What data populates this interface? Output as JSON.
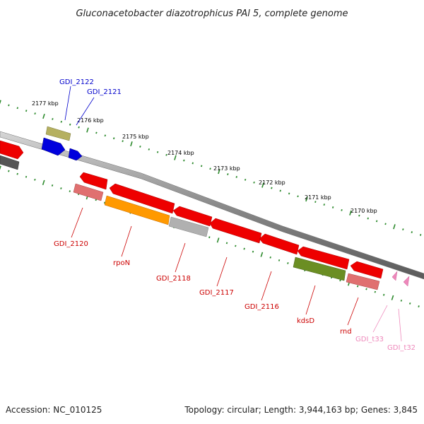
{
  "title": "Gluconacetobacter diazotrophicus PAl 5, complete genome",
  "footer": {
    "accession": "Accession: NC_010125",
    "summary": "Topology: circular; Length: 3,944,163 bp; Genes: 3,845"
  },
  "colors": {
    "backbone": "#8c8c8c",
    "tick": "#2e8b2e",
    "label_red": "#cc0000",
    "label_blue": "#0000cc",
    "label_pink": "#ee88bb"
  },
  "kbp_ruler": [
    {
      "label": "2177 kbp"
    },
    {
      "label": "2176 kbp"
    },
    {
      "label": "2175 kbp"
    },
    {
      "label": "2174 kbp"
    },
    {
      "label": "2173 kbp"
    },
    {
      "label": "2172 kbp"
    },
    {
      "label": "2171 kbp"
    },
    {
      "label": "2170 kbp"
    }
  ],
  "features": [
    {
      "name": "cut-left-red",
      "color": "#ee0000",
      "strand": "+"
    },
    {
      "name": "cut-left-gray",
      "color": "#555555",
      "strand": "-"
    },
    {
      "name": "GDI_2122",
      "color": "#b5b060",
      "strand": "+"
    },
    {
      "name": "GDI_2121a",
      "color": "#0000dd",
      "strand": "+"
    },
    {
      "name": "GDI_2121b",
      "color": "#0000dd",
      "strand": "+"
    },
    {
      "name": "GDI_2120-top",
      "color": "#ee0000",
      "strand": "-"
    },
    {
      "name": "GDI_2120",
      "color": "#e07070",
      "strand": "-"
    },
    {
      "name": "rpoN-top",
      "color": "#ee0000",
      "strand": "-"
    },
    {
      "name": "rpoN",
      "color": "#ff9900",
      "strand": "-"
    },
    {
      "name": "GDI_2118-top",
      "color": "#ee0000",
      "strand": "-"
    },
    {
      "name": "GDI_2118",
      "color": "#b0b0b0",
      "strand": "-"
    },
    {
      "name": "GDI_2117",
      "color": "#ee0000",
      "strand": "-"
    },
    {
      "name": "GDI_2116",
      "color": "#ee0000",
      "strand": "-"
    },
    {
      "name": "kdsD-top",
      "color": "#ee0000",
      "strand": "-"
    },
    {
      "name": "kdsD",
      "color": "#6b8e23",
      "strand": "-"
    },
    {
      "name": "rnd-top",
      "color": "#ee0000",
      "strand": "-"
    },
    {
      "name": "rnd",
      "color": "#e07070",
      "strand": "-"
    },
    {
      "name": "GDI_t33",
      "color": "#ee88bb",
      "strand": "-"
    },
    {
      "name": "GDI_t32",
      "color": "#ee88bb",
      "strand": "-"
    }
  ],
  "labels": [
    {
      "text": "GDI_2122",
      "color": "#0000cc"
    },
    {
      "text": "GDI_2121",
      "color": "#0000cc"
    },
    {
      "text": "GDI_2120",
      "color": "#cc0000"
    },
    {
      "text": "rpoN",
      "color": "#cc0000"
    },
    {
      "text": "GDI_2118",
      "color": "#cc0000"
    },
    {
      "text": "GDI_2117",
      "color": "#cc0000"
    },
    {
      "text": "GDI_2116",
      "color": "#cc0000"
    },
    {
      "text": "kdsD",
      "color": "#cc0000"
    },
    {
      "text": "rnd",
      "color": "#cc0000"
    },
    {
      "text": "GDI_t33",
      "color": "#ee88bb"
    },
    {
      "text": "GDI_t32",
      "color": "#ee88bb"
    }
  ]
}
